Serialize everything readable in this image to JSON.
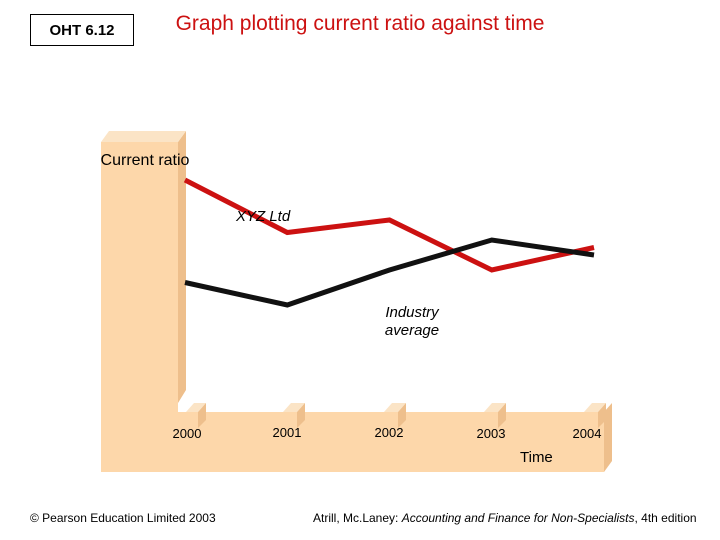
{
  "badge": "OHT 6.12",
  "title": "Graph plotting current ratio against time",
  "footer": {
    "copyright": "© Pearson Education Limited 2003",
    "citation_prefix": "Atrill, Mc.Laney: ",
    "citation_title": "Accounting and Finance for Non-Specialists",
    "citation_suffix": ", 4th edition"
  },
  "colors": {
    "panel": "#fdd7aa",
    "panel_side": "#eebf8c",
    "xyz": "#cc1111",
    "industry": "#111111",
    "title": "#cc1111"
  },
  "chart_data": {
    "type": "line",
    "title": "Graph plotting current ratio against time",
    "ylabel": "Current ratio",
    "xlabel": "Time",
    "categories": [
      "2000",
      "2001",
      "2002",
      "2003",
      "2004"
    ],
    "series": [
      {
        "name": "XYZ Ltd",
        "x": [
          0,
          1,
          2,
          3,
          4
        ],
        "values": [
          8.8,
          6.7,
          7.2,
          5.2,
          6.1
        ]
      },
      {
        "name": "Industry average",
        "x": [
          0,
          1,
          2,
          3,
          4
        ],
        "values": [
          4.7,
          3.8,
          5.2,
          6.4,
          5.8
        ]
      }
    ],
    "series_labels": {
      "xyz": "XYZ Ltd",
      "industry_line1": "Industry",
      "industry_line2": "average"
    },
    "ylim": [
      0,
      10
    ],
    "xlim": [
      0,
      4
    ],
    "grid": false,
    "legend": "none"
  }
}
